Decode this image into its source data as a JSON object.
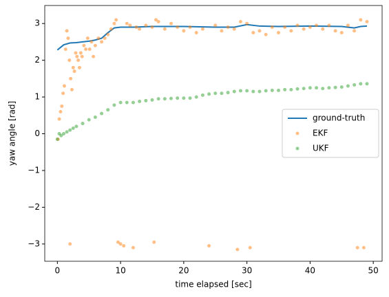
{
  "chart_data": {
    "type": "scatter",
    "xlabel": "time elapsed [sec]",
    "ylabel": "yaw angle [rad]",
    "xlim": [
      -2.0,
      51.4
    ],
    "ylim": [
      -3.47,
      3.49
    ],
    "xticks": [
      0,
      10,
      20,
      30,
      40,
      50
    ],
    "yticks": [
      {
        "value": -3,
        "label": "−3"
      },
      {
        "value": -2,
        "label": "−2"
      },
      {
        "value": -1,
        "label": "−1"
      },
      0,
      1,
      2,
      3
    ],
    "legend": "center right",
    "series": [
      {
        "name": "ground-truth",
        "color": "#1f77b4",
        "mode": "line",
        "x": [
          0,
          1,
          2,
          3,
          4,
          5,
          6,
          7,
          8,
          9,
          10,
          12,
          15,
          20,
          25,
          28,
          30,
          32,
          35,
          40,
          45,
          47,
          48,
          49
        ],
        "values": [
          2.28,
          2.42,
          2.47,
          2.48,
          2.5,
          2.52,
          2.55,
          2.6,
          2.75,
          2.88,
          2.9,
          2.9,
          2.92,
          2.92,
          2.9,
          2.9,
          2.97,
          2.93,
          2.92,
          2.93,
          2.92,
          2.88,
          2.92,
          2.93
        ]
      },
      {
        "name": "EKF",
        "color": "#ff7f0e",
        "mode": "markers",
        "x": [
          0.1,
          0.3,
          0.5,
          0.7,
          0.9,
          1.1,
          1.3,
          1.5,
          1.7,
          1.9,
          2.0,
          2.1,
          2.3,
          2.5,
          2.7,
          2.9,
          3.1,
          3.3,
          3.5,
          3.7,
          3.9,
          4.2,
          4.5,
          4.8,
          5.1,
          5.4,
          5.7,
          6.0,
          6.5,
          7.0,
          7.5,
          8.0,
          8.5,
          9.0,
          9.3,
          9.6,
          10.0,
          10.5,
          11,
          11.5,
          12,
          12.5,
          13,
          14,
          15,
          15.3,
          15.6,
          16,
          17,
          18,
          19,
          20,
          21,
          22,
          23,
          24,
          25,
          26,
          27,
          28,
          28.5,
          29,
          30,
          30.5,
          31,
          32,
          33,
          34,
          35,
          36,
          37,
          38,
          39,
          40,
          41,
          42,
          43,
          44,
          45,
          46,
          47,
          47.5,
          48,
          48.5,
          49
        ],
        "values": [
          -0.15,
          0.4,
          0.6,
          0.75,
          1.1,
          1.3,
          2.3,
          2.8,
          2.6,
          2.0,
          -3.0,
          1.5,
          1.2,
          1.8,
          1.7,
          2.2,
          2.1,
          2.0,
          1.8,
          2.2,
          2.1,
          2.4,
          2.3,
          2.6,
          2.3,
          2.5,
          2.1,
          2.4,
          2.6,
          2.5,
          2.6,
          2.7,
          2.85,
          3.0,
          3.1,
          -2.95,
          -3.0,
          -3.05,
          3.0,
          2.95,
          -3.1,
          2.9,
          2.85,
          2.95,
          2.9,
          -2.95,
          3.1,
          3.05,
          2.85,
          3.0,
          2.9,
          2.8,
          2.9,
          2.75,
          2.85,
          -3.05,
          2.95,
          2.8,
          2.9,
          2.85,
          -3.15,
          3.05,
          3.0,
          -3.1,
          2.75,
          2.8,
          2.7,
          2.9,
          2.75,
          2.9,
          2.8,
          2.95,
          2.85,
          2.9,
          2.95,
          2.85,
          2.95,
          2.8,
          2.75,
          2.95,
          2.8,
          -3.1,
          3.1,
          -3.1,
          3.05
        ]
      },
      {
        "name": "UKF",
        "color": "#2ca02c",
        "mode": "markers",
        "x": [
          0,
          0.3,
          0.6,
          1,
          1.5,
          2,
          2.5,
          3,
          4,
          5,
          6,
          7,
          8,
          9,
          10,
          11,
          12,
          13,
          14,
          15,
          16,
          17,
          18,
          19,
          20,
          21,
          22,
          23,
          24,
          25,
          26,
          27,
          28,
          29,
          30,
          31,
          32,
          33,
          34,
          35,
          36,
          37,
          38,
          39,
          40,
          41,
          42,
          43,
          44,
          45,
          46,
          47,
          48,
          49
        ],
        "values": [
          -0.15,
          0.0,
          -0.05,
          0.0,
          0.05,
          0.1,
          0.15,
          0.2,
          0.28,
          0.38,
          0.45,
          0.55,
          0.65,
          0.78,
          0.85,
          0.85,
          0.85,
          0.88,
          0.9,
          0.92,
          0.95,
          0.95,
          0.96,
          0.97,
          0.97,
          0.97,
          1.0,
          1.05,
          1.08,
          1.1,
          1.1,
          1.12,
          1.15,
          1.17,
          1.17,
          1.15,
          1.15,
          1.17,
          1.18,
          1.18,
          1.2,
          1.2,
          1.22,
          1.23,
          1.25,
          1.25,
          1.23,
          1.25,
          1.26,
          1.27,
          1.3,
          1.33,
          1.36,
          1.36
        ]
      }
    ]
  }
}
